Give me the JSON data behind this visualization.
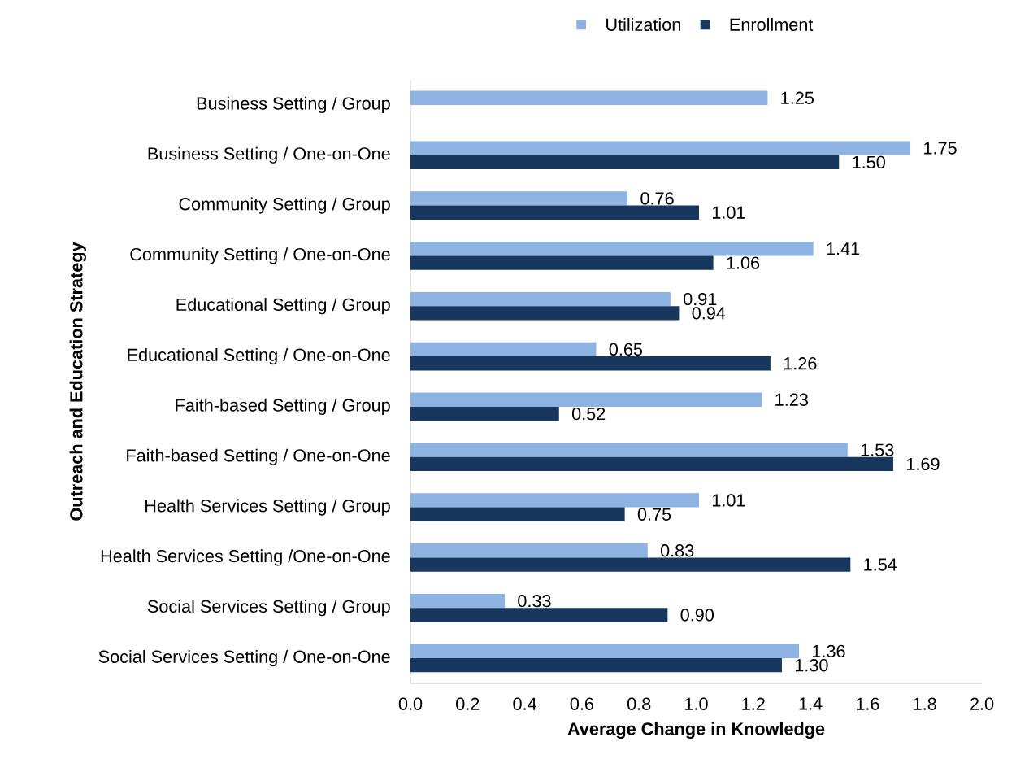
{
  "chart_data": {
    "type": "bar",
    "orientation": "horizontal",
    "xlabel": "Average Change in Knowledge",
    "ylabel": "Outreach and Education Strategy",
    "legend": "top",
    "categories": [
      "Business Setting / Group",
      "Business Setting / One-on-One",
      "Community Setting / Group",
      "Community Setting / One-on-One",
      "Educational Setting / Group",
      "Educational Setting / One-on-One",
      "Faith-based Setting / Group",
      "Faith-based Setting / One-on-One",
      "Health Services Setting / Group",
      "Health Services Setting /One-on-One",
      "Social Services Setting / Group",
      "Social Services Setting / One-on-One"
    ],
    "series": [
      {
        "name": "Utilization",
        "color": "#8db3e2",
        "values": [
          1.25,
          1.75,
          0.76,
          1.41,
          0.91,
          0.65,
          1.23,
          1.53,
          1.01,
          0.83,
          0.33,
          1.36
        ],
        "value_labels": [
          "1.25",
          "1.75",
          "0.76",
          "1.41",
          "0.91",
          "0.65",
          "1.23",
          "1.53",
          "1.01",
          "0.83",
          "0.33",
          "1.36"
        ]
      },
      {
        "name": "Enrollment",
        "color": "#17375e",
        "values": [
          null,
          1.5,
          1.01,
          1.06,
          0.94,
          1.26,
          0.52,
          1.69,
          0.75,
          1.54,
          0.9,
          1.3
        ],
        "value_labels": [
          null,
          "1.50",
          "1.01",
          "1.06",
          "0.94",
          "1.26",
          "0.52",
          "1.69",
          "0.75",
          "1.54",
          "0.90",
          "1.30"
        ]
      }
    ],
    "xlim": [
      0,
      2
    ],
    "xticks": [
      {
        "value": 0,
        "label": "0.0"
      },
      {
        "value": 0.2,
        "label": "0.2"
      },
      {
        "value": 0.4,
        "label": "0.4"
      },
      {
        "value": 0.6,
        "label": "0.6"
      },
      {
        "value": 0.8,
        "label": "0.8"
      },
      {
        "value": 1,
        "label": "1.0"
      },
      {
        "value": 1.2,
        "label": "1.2"
      },
      {
        "value": 1.4,
        "label": "1.4"
      },
      {
        "value": 1.6,
        "label": "1.6"
      },
      {
        "value": 1.8,
        "label": "1.8"
      },
      {
        "value": 2,
        "label": "2.0"
      }
    ]
  }
}
